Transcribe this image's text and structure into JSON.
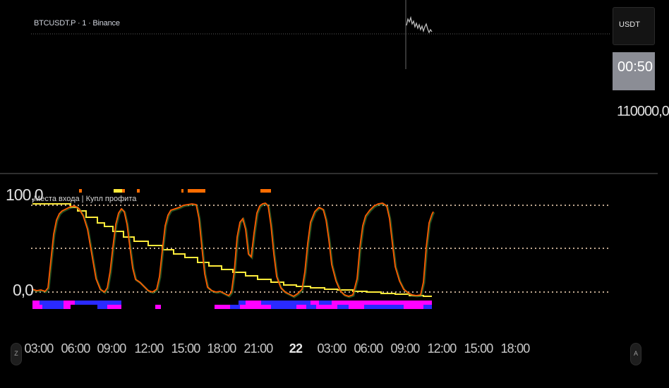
{
  "header": {
    "symbol": "BTCUSDT.P · 1 · Binance"
  },
  "price_axis": {
    "currency": "USDT",
    "countdown": "00:50",
    "price_label": "110000,0"
  },
  "indicator": {
    "title": "Места входа | Купл профита",
    "level_100": "100,0",
    "level_0": "0,0"
  },
  "time_axis": {
    "labels": [
      "03:00",
      "06:00",
      "09:00",
      "12:00",
      "15:00",
      "18:00",
      "21:00",
      "22",
      "03:00",
      "06:00",
      "09:00",
      "12:00",
      "15:00",
      "18:00"
    ]
  },
  "nav": {
    "left_button": "Z",
    "right_button": "A"
  },
  "colors": {
    "background": "#000000",
    "oscillator_line": "#ff6d00",
    "oscillator_shadow": "#4caf50",
    "step_line": "#ffeb3b",
    "dotted_levels": "#ffe0c0",
    "bar_blue": "#2a2aff",
    "bar_magenta": "#ff00ff",
    "marker_orange": "#ff6d00",
    "marker_yellow": "#ffeb3b",
    "countdown_bg": "#8b8d95"
  }
}
